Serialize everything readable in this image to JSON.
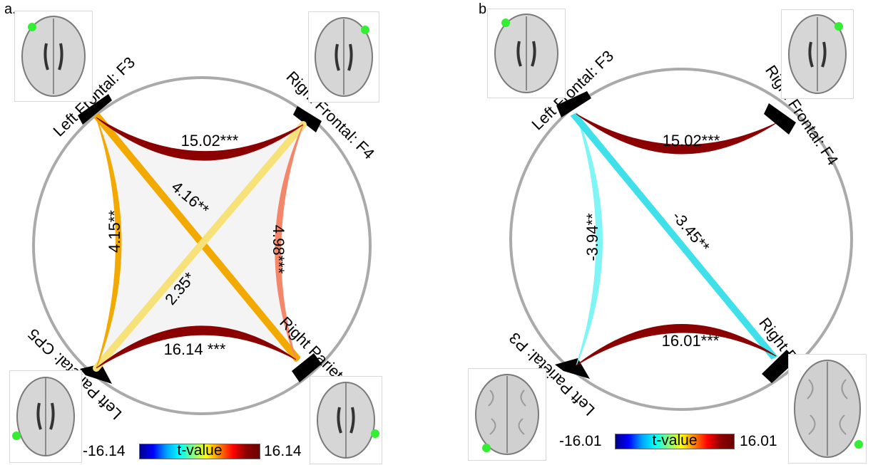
{
  "panel_a": {
    "letter": "a.",
    "nodes": {
      "lf": "Left Frontal: F3",
      "rf": "Right Frontal: F4",
      "lp": "Left Parietal: CP5",
      "rp": "Right Parietal: CP6"
    },
    "edges": {
      "lf_rf": "15.02***",
      "lp_rp": "16.14 ***",
      "lf_lp": "4.15**",
      "rf_rp": "4.98***",
      "lf_rp": "4.16**",
      "rf_lp": "2.35*"
    },
    "edge_colors": {
      "lf_rf": "#8b0000",
      "lp_rp": "#8b0000",
      "lf_lp": "#f2a900",
      "rf_rp": "#f4866a",
      "lf_rp": "#f2a900",
      "rf_lp": "#f7e27a"
    },
    "colorbar": {
      "min": "-16.14",
      "max": "16.14",
      "title": "t-value"
    }
  },
  "panel_b": {
    "letter": "b.",
    "nodes": {
      "lf": "Left Frontal: F3",
      "rf": "Right Frontal: F4",
      "lp": "Left Parietal: P3",
      "rp": "Right Parietal: P4"
    },
    "edges": {
      "lf_rf": "15.02***",
      "lp_rp": "16.01***",
      "lf_lp": "-3.94**",
      "lf_rp": "-3.45**"
    },
    "edge_colors": {
      "lf_rf": "#8b0000",
      "lp_rp": "#8b0000",
      "lf_lp": "#7ff5f5",
      "lf_rp": "#3fe0ea"
    },
    "colorbar": {
      "min": "-16.01",
      "max": "16.01",
      "title": "t-value"
    }
  },
  "colors": {
    "ring": "#aaaaaa",
    "node_marker": "#000000",
    "center_fill": "#f4f4f4",
    "electrode": "#33ee33"
  }
}
